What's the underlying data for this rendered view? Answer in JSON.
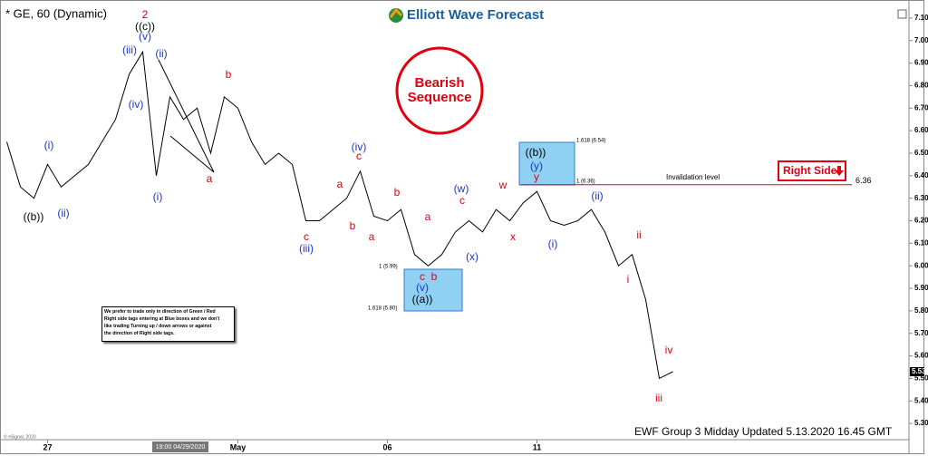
{
  "chart_data": {
    "type": "line",
    "title": "* GE, 60 (Dynamic)",
    "logo": "Elliott Wave Forecast",
    "badge": "Bearish Sequence",
    "tag": "Right Side",
    "footer": "EWF Group 3 Midday Updated 5.13.2020 16.45 GMT",
    "copyright": "© eSignal, 2020",
    "cursor_label": "19:00 04/29/2020",
    "note_lines": [
      "We prefer to trade only in direction of Green / Red",
      "Right side tags entering at Blue boxes and we don't",
      "like trading Turning up / down arrows or against",
      "the direction of Right side tags."
    ],
    "categories": [
      null,
      null,
      null,
      "27",
      null,
      null,
      null,
      null,
      null,
      null,
      null,
      null,
      null,
      null,
      null,
      null,
      null,
      "May",
      null,
      null,
      null,
      null,
      null,
      null,
      null,
      null,
      null,
      null,
      "06",
      null,
      null,
      null,
      null,
      null,
      null,
      null,
      null,
      null,
      null,
      "11",
      null,
      null,
      null,
      null,
      null,
      null,
      null,
      null,
      null,
      null,
      null,
      null,
      null,
      null,
      null,
      null,
      null,
      null,
      null,
      null,
      null,
      null,
      null,
      null,
      null
    ],
    "series": [
      {
        "name": "GE",
        "color": "#000000",
        "values": [
          6.55,
          6.35,
          6.3,
          6.45,
          6.35,
          6.4,
          6.45,
          6.55,
          6.65,
          6.85,
          6.95,
          6.4,
          6.75,
          6.65,
          6.7,
          6.5,
          6.75,
          6.7,
          6.55,
          6.45,
          6.5,
          6.45,
          6.2,
          6.2,
          6.25,
          6.3,
          6.42,
          6.22,
          6.2,
          6.25,
          6.05,
          6.0,
          6.05,
          6.15,
          6.2,
          6.15,
          6.25,
          6.2,
          6.28,
          6.33,
          6.2,
          6.18,
          6.2,
          6.25,
          6.15,
          6.0,
          6.05,
          5.85,
          5.5,
          5.53,
          null,
          null,
          null,
          null,
          null,
          null,
          null,
          null,
          null,
          null,
          null,
          null,
          null,
          null,
          null
        ]
      }
    ],
    "last_price": 5.53,
    "invalidation": {
      "label": "Invalidation level",
      "value": 6.36,
      "color": "#e0000f"
    },
    "fib_labels": [
      "1.618 (6.54)",
      "1 (6.36)",
      "1 (5.99)",
      "1.618 (5.80)"
    ],
    "annotations": [
      {
        "text": "2",
        "color": "#e0000f"
      },
      {
        "text": "((c))",
        "color": "#000000"
      },
      {
        "text": "(v)",
        "color": "#1a36c4"
      },
      {
        "text": "(iii)",
        "color": "#1a36c4"
      },
      {
        "text": "(ii)",
        "color": "#1a36c4"
      },
      {
        "text": "(iv)",
        "color": "#1a36c4"
      },
      {
        "text": "(i)",
        "color": "#1a36c4"
      },
      {
        "text": "((b))",
        "color": "#000000"
      },
      {
        "text": "(ii)",
        "color": "#1a36c4"
      },
      {
        "text": "(i)",
        "color": "#1a36c4"
      },
      {
        "text": "a",
        "color": "#e0000f"
      },
      {
        "text": "b",
        "color": "#e0000f"
      },
      {
        "text": "c",
        "color": "#e0000f"
      },
      {
        "text": "(iii)",
        "color": "#1a36c4"
      },
      {
        "text": "a",
        "color": "#e0000f"
      },
      {
        "text": "b",
        "color": "#e0000f"
      },
      {
        "text": "(iv)",
        "color": "#1a36c4"
      },
      {
        "text": "c",
        "color": "#e0000f"
      },
      {
        "text": "a",
        "color": "#e0000f"
      },
      {
        "text": "b",
        "color": "#e0000f"
      },
      {
        "text": "a",
        "color": "#e0000f"
      },
      {
        "text": "c",
        "color": "#e0000f"
      },
      {
        "text": "b",
        "color": "#e0000f"
      },
      {
        "text": "(v)",
        "color": "#1a36c4"
      },
      {
        "text": "((a))",
        "color": "#000000"
      },
      {
        "text": "(w)",
        "color": "#1a36c4"
      },
      {
        "text": "c",
        "color": "#e0000f"
      },
      {
        "text": "(x)",
        "color": "#1a36c4"
      },
      {
        "text": "w",
        "color": "#e0000f"
      },
      {
        "text": "x",
        "color": "#e0000f"
      },
      {
        "text": "((b))",
        "color": "#000000"
      },
      {
        "text": "(y)",
        "color": "#1a36c4"
      },
      {
        "text": "y",
        "color": "#e0000f"
      },
      {
        "text": "(ii)",
        "color": "#1a36c4"
      },
      {
        "text": "(i)",
        "color": "#1a36c4"
      },
      {
        "text": "ii",
        "color": "#e0000f"
      },
      {
        "text": "i",
        "color": "#e0000f"
      },
      {
        "text": "iv",
        "color": "#e0000f"
      },
      {
        "text": "iii",
        "color": "#e0000f"
      }
    ],
    "ylim": [
      5.24,
      7.16
    ],
    "yticks": [
      {
        "value": 5.3,
        "label": "5.30"
      },
      {
        "value": 5.4,
        "label": "5.40"
      },
      {
        "value": 5.5,
        "label": "5.50"
      },
      {
        "value": 5.6,
        "label": "5.60"
      },
      {
        "value": 5.7,
        "label": "5.70"
      },
      {
        "value": 5.8,
        "label": "5.80"
      },
      {
        "value": 5.9,
        "label": "5.90"
      },
      {
        "value": 6,
        "label": "6.00"
      },
      {
        "value": 6.1,
        "label": "6.10"
      },
      {
        "value": 6.2,
        "label": "6.20"
      },
      {
        "value": 6.3,
        "label": "6.30"
      },
      {
        "value": 6.4,
        "label": "6.40"
      },
      {
        "value": 6.5,
        "label": "6.50"
      },
      {
        "value": 6.6,
        "label": "6.60"
      },
      {
        "value": 6.7,
        "label": "6.70"
      },
      {
        "value": 6.8,
        "label": "6.80"
      },
      {
        "value": 6.9,
        "label": "6.90"
      },
      {
        "value": 7,
        "label": "7.00"
      },
      {
        "value": 7.1,
        "label": "7.10"
      }
    ],
    "grid": false
  }
}
